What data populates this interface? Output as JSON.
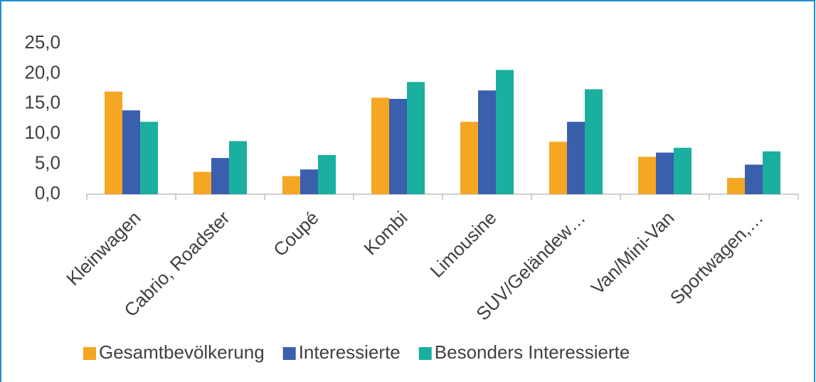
{
  "chart_data": {
    "type": "bar",
    "categories": [
      "Kleinwagen",
      "Cabrio, Roadster",
      "Coupé",
      "Kombi",
      "Limousine",
      "SUV/Geländew…",
      "Van/Mini-Van",
      "Sportwagen,…"
    ],
    "series": [
      {
        "name": "Gesamtbevölkerung",
        "color": "#f5a623",
        "values": [
          17.0,
          3.7,
          3.0,
          16.0,
          12.0,
          8.7,
          6.2,
          2.7
        ]
      },
      {
        "name": "Interessierte",
        "color": "#3a5fad",
        "values": [
          13.9,
          6.0,
          4.1,
          15.8,
          17.2,
          12.0,
          6.9,
          4.9
        ]
      },
      {
        "name": "Besonders Interessierte",
        "color": "#1aaf9f",
        "values": [
          12.0,
          8.8,
          6.5,
          18.6,
          20.6,
          17.4,
          7.7,
          7.1
        ]
      }
    ],
    "ylim": [
      0,
      25
    ],
    "yticks": [
      {
        "value": 0,
        "label": "0,0"
      },
      {
        "value": 5,
        "label": "5,0"
      },
      {
        "value": 10,
        "label": "10,0"
      },
      {
        "value": 15,
        "label": "15,0"
      },
      {
        "value": 20,
        "label": "20,0"
      },
      {
        "value": 25,
        "label": "25,0"
      }
    ],
    "grid": false,
    "legend": "bottom"
  }
}
